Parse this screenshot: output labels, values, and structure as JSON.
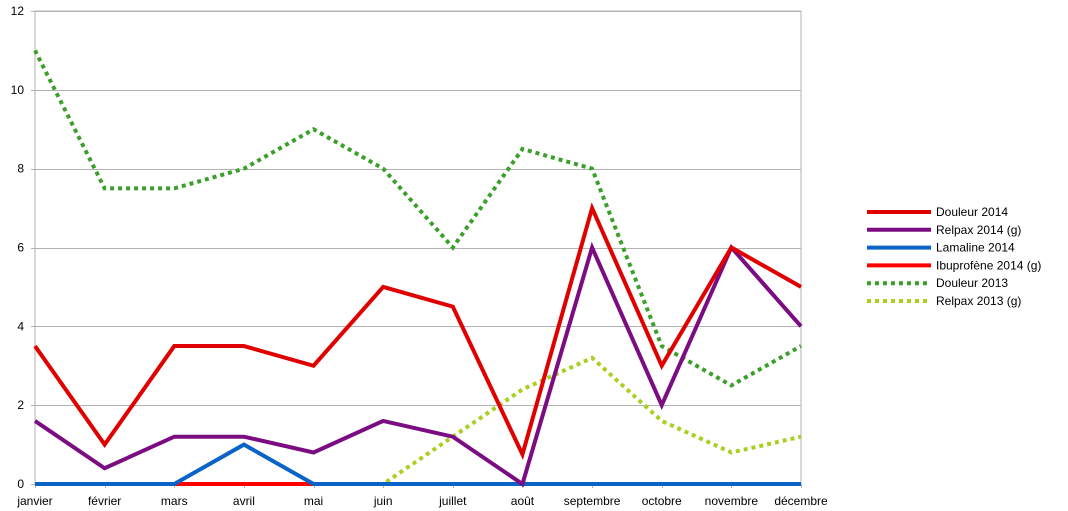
{
  "chart_data": {
    "type": "line",
    "title": "",
    "xlabel": "",
    "ylabel": "",
    "ylim": [
      0,
      12
    ],
    "yticks": [
      0,
      2,
      4,
      6,
      8,
      10,
      12
    ],
    "grid": true,
    "legend_position": "right",
    "categories": [
      "janvier",
      "février",
      "mars",
      "avril",
      "mai",
      "juin",
      "juillet",
      "août",
      "septembre",
      "octobre",
      "novembre",
      "décembre"
    ],
    "series": [
      {
        "name": "Douleur 2014",
        "color": "#e00000",
        "dashed": false,
        "values": [
          3.5,
          1,
          3.5,
          3.5,
          3,
          5,
          4.5,
          0.75,
          7,
          3,
          6,
          5
        ]
      },
      {
        "name": "Relpax 2014 (g)",
        "color": "#7b0c82",
        "dashed": false,
        "values": [
          1.6,
          0.4,
          1.2,
          1.2,
          0.8,
          1.6,
          1.2,
          0,
          6,
          2,
          6,
          4
        ]
      },
      {
        "name": "Lamaline 2014",
        "color": "#0a64c8",
        "dashed": false,
        "values": [
          0,
          0,
          0,
          1,
          0,
          0,
          0,
          0,
          0,
          0,
          0,
          0
        ]
      },
      {
        "name": "Ibuprofène 2014 (g)",
        "color": "#ff0000",
        "dashed": false,
        "values": [
          0,
          0,
          0,
          0,
          0,
          0,
          0,
          0,
          0,
          0,
          0,
          0
        ]
      },
      {
        "name": "Douleur 2013",
        "color": "#3aa02a",
        "dashed": true,
        "values": [
          11,
          7.5,
          7.5,
          8,
          9,
          8,
          6,
          8.5,
          8,
          3.5,
          2.5,
          3.5
        ]
      },
      {
        "name": "Relpax 2013 (g)",
        "color": "#a8d020",
        "dashed": true,
        "values": [
          0,
          0,
          0,
          0,
          0,
          0,
          1.2,
          2.4,
          3.2,
          1.6,
          0.8,
          1.2
        ]
      }
    ]
  }
}
